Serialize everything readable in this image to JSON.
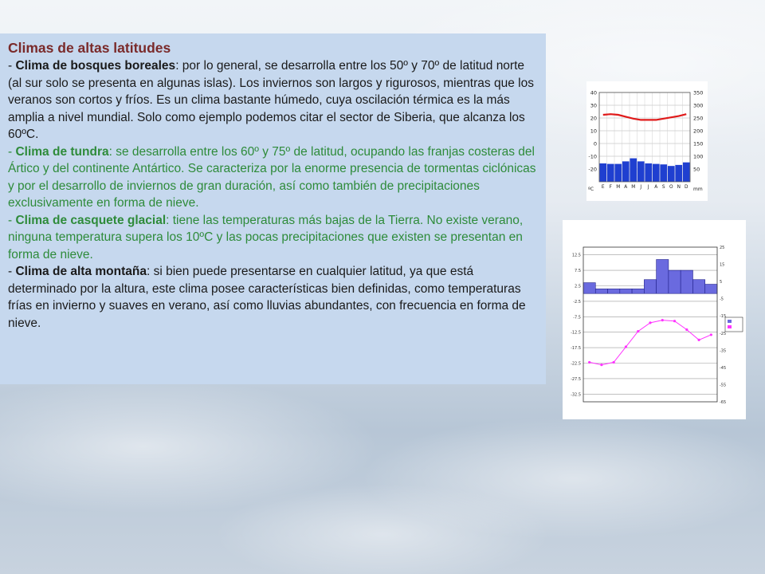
{
  "heading": "Climas de altas latitudes",
  "sections": [
    {
      "dash": "- ",
      "term": "Clima de bosques boreales",
      "body": ": por lo general, se desarrolla entre los 50º y 70º de latitud norte (al sur solo se presenta en algunas islas). Los inviernos son largos y rigurosos, mientras que los veranos son cortos y fríos. Es un clima bastante húmedo, cuya oscilación térmica es la más amplia a nivel mundial. Solo como ejemplo podemos citar el sector de Siberia, que alcanza los 60ºC.",
      "color": "#1a1a1a"
    },
    {
      "dash": "- ",
      "term": "Clima de tundra",
      "body": ": se desarrolla entre los 60º y 75º de latitud, ocupando las franjas costeras del Ártico y del continente Antártico. Se caracteriza por la enorme presencia de tormentas ciclónicas y por el desarrollo de inviernos de gran duración, así como también de precipitaciones exclusivamente en forma de nieve.",
      "color": "#2e8b3a"
    },
    {
      "dash": "- ",
      "term": "Clima de casquete glacial",
      "body": ": tiene las temperaturas más bajas de la Tierra. No existe verano, ninguna temperatura supera los 10ºC y las pocas precipitaciones que existen se presentan en forma de nieve.",
      "color": "#2e8b3a"
    },
    {
      "dash": "- ",
      "term": "Clima de alta montaña",
      "body": ": si bien puede presentarse en cualquier latitud, ya que está determinado por la altura, este clima posee características bien definidas, como temperaturas frías en invierno y suaves en verano, así como lluvias abundantes, con frecuencia en forma de nieve.",
      "color": "#1a1a1a"
    }
  ],
  "chart_data": [
    {
      "type": "bar",
      "categories": [
        "E",
        "F",
        "M",
        "A",
        "M",
        "J",
        "J",
        "A",
        "S",
        "O",
        "N",
        "D"
      ],
      "series": [
        {
          "values": [
            72,
            70,
            70,
            80,
            92,
            80,
            72,
            70,
            68,
            62,
            66,
            76
          ],
          "color": "#1f3fd0"
        },
        {
          "values": [
            22.5,
            23,
            22.5,
            21,
            19.5,
            18.5,
            18.5,
            18.5,
            19.5,
            20.5,
            21.5,
            23
          ],
          "color": "#e01a1a"
        }
      ],
      "left_ticks": [
        "40",
        "30",
        "20",
        "10",
        "0",
        "-10",
        "-20"
      ],
      "right_ticks": [
        "350",
        "300",
        "250",
        "200",
        "150",
        "100",
        "50"
      ],
      "left_unit": "ºC",
      "right_unit": "mm",
      "ylim_left": [
        -30,
        40
      ],
      "ylim_right": [
        0,
        350
      ],
      "grid": true
    },
    {
      "type": "bar",
      "bar_values": [
        3.5,
        1.5,
        1.5,
        1.5,
        1.5,
        4.5,
        11,
        7.5,
        7.5,
        4.5,
        3
      ],
      "line_values": [
        -42,
        -43.5,
        -42,
        -33,
        -24,
        -19,
        -17.5,
        -18,
        -23,
        -29,
        -26
      ],
      "left_ticks": [
        "12.5",
        "7.5",
        "2.5",
        "-2.5",
        "-7.5",
        "-12.5",
        "-17.5",
        "-22.5",
        "-27.5",
        "-32.5"
      ],
      "right_ticks": [
        "25",
        "15",
        "5",
        "-5",
        "-15",
        "-25",
        "-35",
        "-45",
        "-55",
        "-65"
      ],
      "ylim_left": [
        -35,
        15
      ],
      "ylim_right": [
        -65,
        25
      ],
      "bar_color": "#6a6adf",
      "line_color": "#ff33ff",
      "grid": true
    }
  ]
}
